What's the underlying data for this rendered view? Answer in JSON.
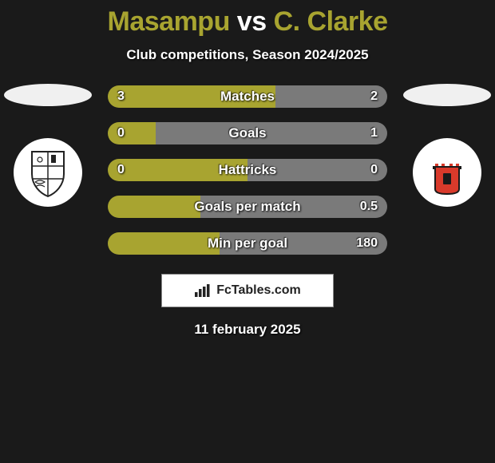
{
  "title": {
    "player1": "Masampu",
    "vs": "vs",
    "player2": "C. Clarke"
  },
  "subtitle": "Club competitions, Season 2024/2025",
  "colors": {
    "bar_left": "#a8a430",
    "bar_right": "#7a7a7a",
    "left_ellipse": "#f0f0f0",
    "right_ellipse": "#f0f0f0",
    "left_badge_bg": "#ffffff",
    "right_badge_bg": "#ffffff",
    "right_badge_accent": "#d93a2b"
  },
  "stats": [
    {
      "label": "Matches",
      "left_value": "3",
      "right_value": "2",
      "left_pct": 60,
      "right_pct": 40
    },
    {
      "label": "Goals",
      "left_value": "0",
      "right_value": "1",
      "left_pct": 17,
      "right_pct": 83
    },
    {
      "label": "Hattricks",
      "left_value": "0",
      "right_value": "0",
      "left_pct": 50,
      "right_pct": 50
    },
    {
      "label": "Goals per match",
      "left_value": "",
      "right_value": "0.5",
      "left_pct": 33,
      "right_pct": 67
    },
    {
      "label": "Min per goal",
      "left_value": "",
      "right_value": "180",
      "left_pct": 40,
      "right_pct": 60
    }
  ],
  "footer": {
    "brand": "FcTables.com"
  },
  "date": "11 february 2025"
}
